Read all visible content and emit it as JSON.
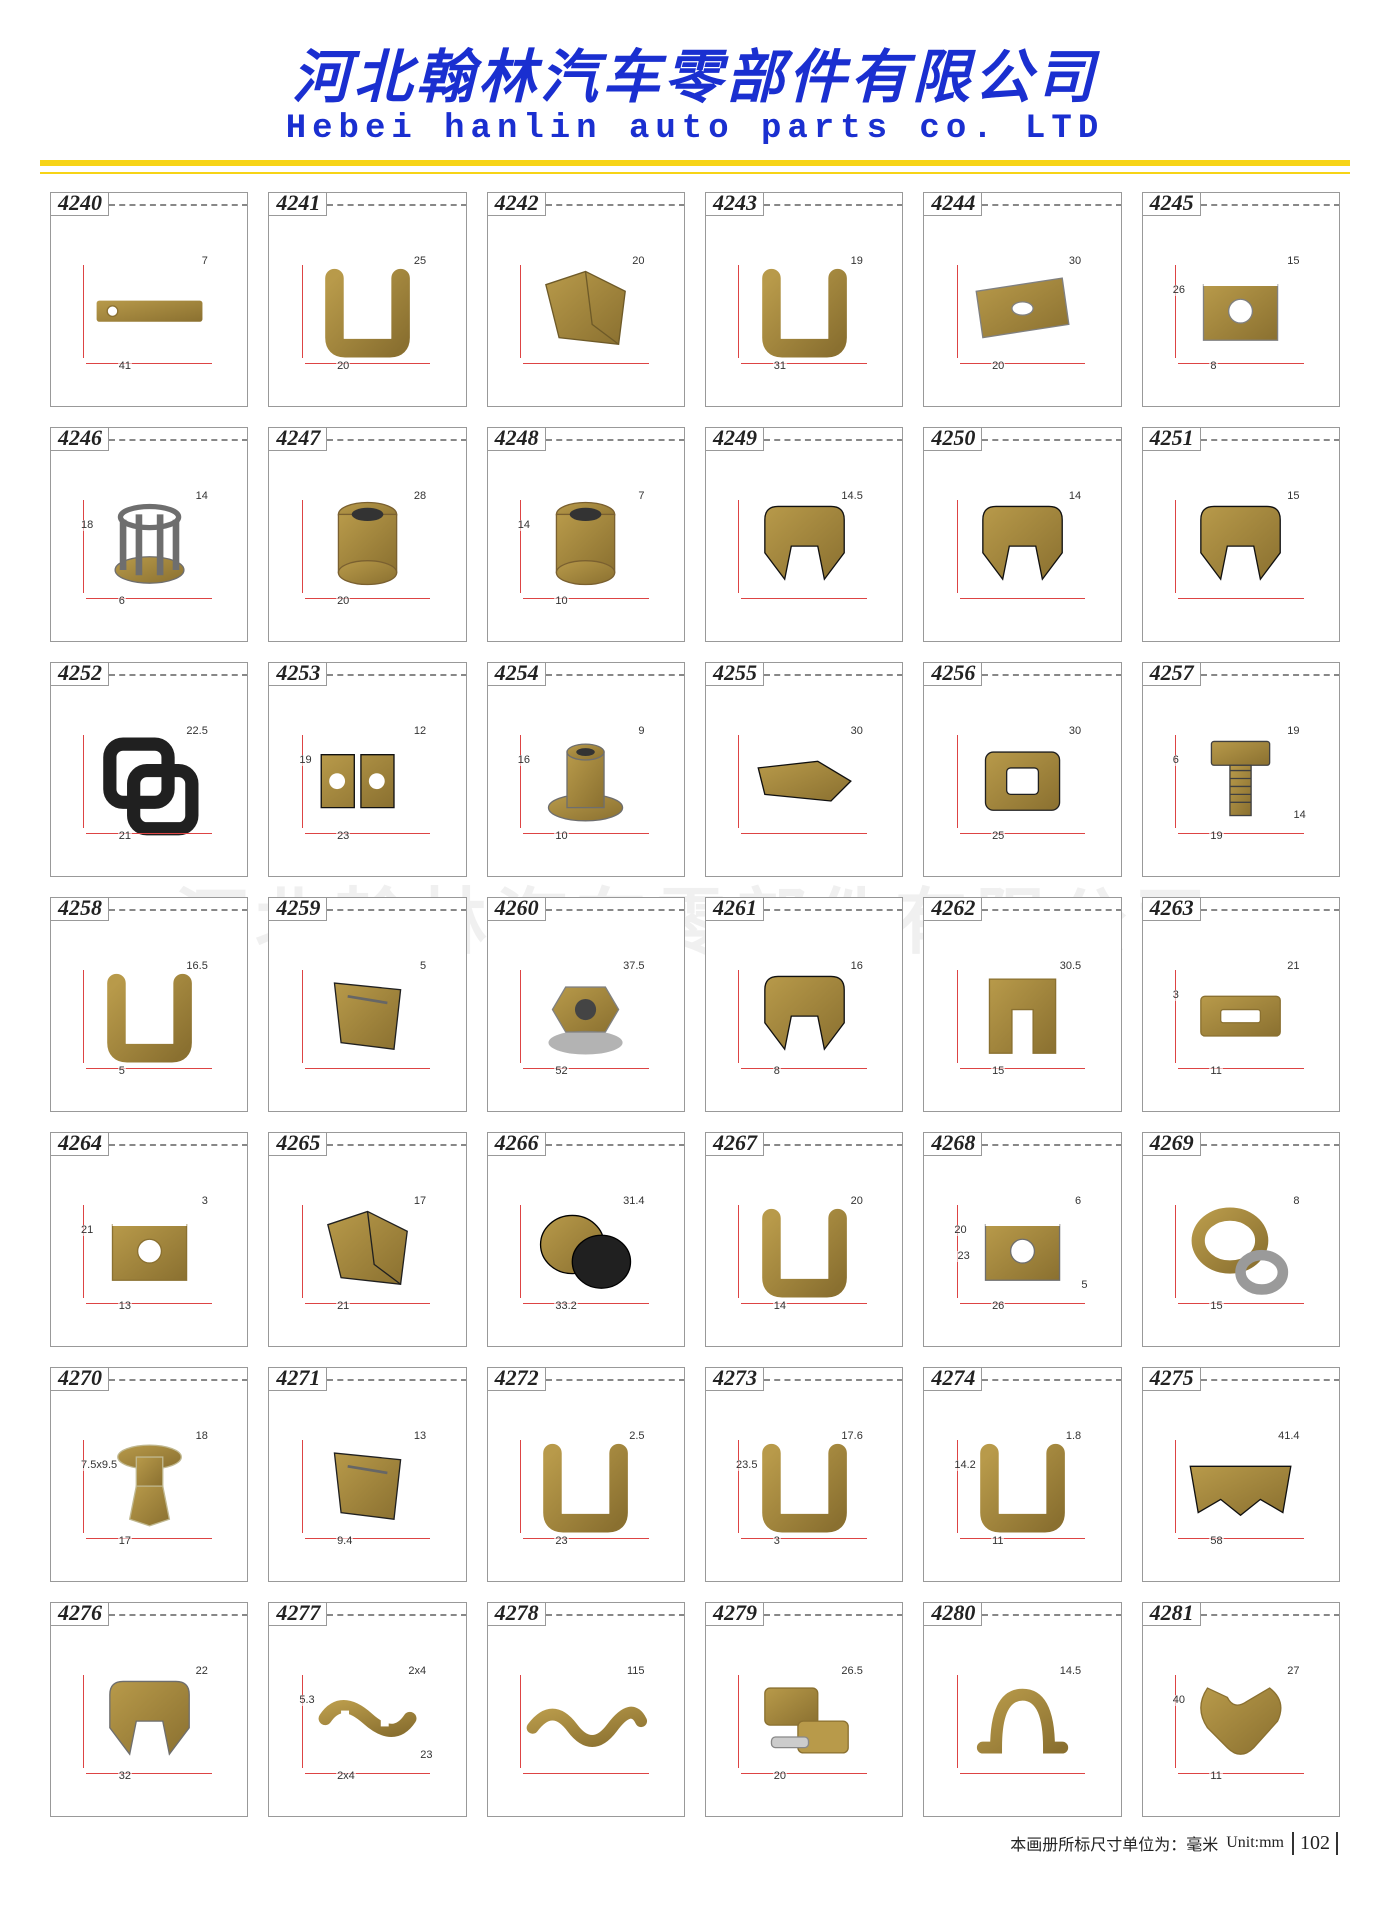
{
  "header": {
    "title_cn": "河北翰林汽车零部件有限公司",
    "title_en": "Hebei hanlin auto parts co. LTD",
    "title_color": "#1a2fd0",
    "divider_color": "#f7d417"
  },
  "watermark": "河北翰林汽车零部件有限公司",
  "footer": {
    "unit_label_cn": "本画册所标尺寸单位为：毫米",
    "unit_label_en": "Unit:mm",
    "page_number": "102"
  },
  "layout": {
    "columns": 6,
    "rows": 7,
    "cell_border_color": "#999999",
    "dim_line_color": "#d44"
  },
  "parts": [
    {
      "id": "4240",
      "dims": [
        "7",
        "41"
      ],
      "shape_hint": "flat-bracket",
      "colors": [
        "#b89a4a",
        "#8a7030"
      ]
    },
    {
      "id": "4241",
      "dims": [
        "25",
        "20"
      ],
      "shape_hint": "u-clip",
      "colors": [
        "#b0b0b0",
        "#808080"
      ]
    },
    {
      "id": "4242",
      "dims": [
        "20"
      ],
      "shape_hint": "folded-clip",
      "colors": [
        "#a8883c",
        "#6e5a28"
      ]
    },
    {
      "id": "4243",
      "dims": [
        "19",
        "31"
      ],
      "shape_hint": "u-clip",
      "colors": [
        "#b89a4a",
        "#8a7030"
      ]
    },
    {
      "id": "4244",
      "dims": [
        "30",
        "20"
      ],
      "shape_hint": "flat-plate",
      "colors": [
        "#b0b0b0",
        "#808080"
      ]
    },
    {
      "id": "4245",
      "dims": [
        "15",
        "8",
        "26"
      ],
      "shape_hint": "u-nut",
      "colors": [
        "#b0b0b0",
        "#808080"
      ]
    },
    {
      "id": "4246",
      "dims": [
        "14",
        "6",
        "18"
      ],
      "shape_hint": "cage-nut",
      "colors": [
        "#9a9a9a",
        "#6e6e6e"
      ]
    },
    {
      "id": "4247",
      "dims": [
        "28",
        "20"
      ],
      "shape_hint": "bushing",
      "colors": [
        "#b89a4a",
        "#7a6030"
      ]
    },
    {
      "id": "4248",
      "dims": [
        "7",
        "10",
        "14"
      ],
      "shape_hint": "bushing",
      "colors": [
        "#b89a4a",
        "#7a6030"
      ]
    },
    {
      "id": "4249",
      "dims": [
        "14.5"
      ],
      "shape_hint": "spring-clip",
      "colors": [
        "#303030",
        "#101010"
      ]
    },
    {
      "id": "4250",
      "dims": [
        "14"
      ],
      "shape_hint": "spring-clip",
      "colors": [
        "#303030",
        "#101010"
      ]
    },
    {
      "id": "4251",
      "dims": [
        "15"
      ],
      "shape_hint": "spring-clip",
      "colors": [
        "#303030",
        "#101010"
      ]
    },
    {
      "id": "4252",
      "dims": [
        "22.5",
        "21"
      ],
      "shape_hint": "square-grommet",
      "colors": [
        "#202020",
        "#000000"
      ]
    },
    {
      "id": "4253",
      "dims": [
        "12",
        "23",
        "19"
      ],
      "shape_hint": "double-clip",
      "colors": [
        "#303030",
        "#101010"
      ]
    },
    {
      "id": "4254",
      "dims": [
        "9",
        "10",
        "16"
      ],
      "shape_hint": "flanged-bushing",
      "colors": [
        "#9a9a9a",
        "#6e6e6e"
      ]
    },
    {
      "id": "4255",
      "dims": [
        "30"
      ],
      "shape_hint": "flat-clip",
      "colors": [
        "#303030",
        "#101010"
      ]
    },
    {
      "id": "4256",
      "dims": [
        "30",
        "25"
      ],
      "shape_hint": "plate-hole",
      "colors": [
        "#404040",
        "#202020"
      ]
    },
    {
      "id": "4257",
      "dims": [
        "19",
        "19",
        "6",
        "14"
      ],
      "shape_hint": "bolt-plate",
      "colors": [
        "#9a9a9a",
        "#404040"
      ]
    },
    {
      "id": "4258",
      "dims": [
        "16.5",
        "5"
      ],
      "shape_hint": "u-clip",
      "colors": [
        "#b89a4a",
        "#8a7030"
      ]
    },
    {
      "id": "4259",
      "dims": [
        "5"
      ],
      "shape_hint": "dark-clip",
      "colors": [
        "#404040",
        "#202020"
      ]
    },
    {
      "id": "4260",
      "dims": [
        "37.5",
        "52"
      ],
      "shape_hint": "chrome-nut",
      "colors": [
        "#d0d0d0",
        "#808080"
      ]
    },
    {
      "id": "4261",
      "dims": [
        "16",
        "8"
      ],
      "shape_hint": "spring-clip",
      "colors": [
        "#303030",
        "#101010"
      ]
    },
    {
      "id": "4262",
      "dims": [
        "30.5",
        "15"
      ],
      "shape_hint": "u-shim",
      "colors": [
        "#b89a4a",
        "#8a7030"
      ]
    },
    {
      "id": "4263",
      "dims": [
        "21",
        "11",
        "3"
      ],
      "shape_hint": "slotted-clip",
      "colors": [
        "#b89a4a",
        "#8a7030"
      ]
    },
    {
      "id": "4264",
      "dims": [
        "3",
        "13",
        "21"
      ],
      "shape_hint": "u-nut",
      "colors": [
        "#b89a4a",
        "#8a7030"
      ]
    },
    {
      "id": "4265",
      "dims": [
        "17",
        "21"
      ],
      "shape_hint": "folded-clip",
      "colors": [
        "#404040",
        "#202020"
      ]
    },
    {
      "id": "4266",
      "dims": [
        "31.4",
        "33.2"
      ],
      "shape_hint": "plug-cap",
      "colors": [
        "#202020",
        "#000000"
      ]
    },
    {
      "id": "4267",
      "dims": [
        "20",
        "14"
      ],
      "shape_hint": "u-clip",
      "colors": [
        "#9a9a9a",
        "#6e6e6e"
      ]
    },
    {
      "id": "4268",
      "dims": [
        "6",
        "26",
        "20",
        "5",
        "23"
      ],
      "shape_hint": "u-nut",
      "colors": [
        "#9a9a9a",
        "#6e6e6e"
      ]
    },
    {
      "id": "4269",
      "dims": [
        "8",
        "15"
      ],
      "shape_hint": "ring-washer",
      "colors": [
        "#9a9a9a",
        "#6e6e6e"
      ]
    },
    {
      "id": "4270",
      "dims": [
        "18",
        "17",
        "7.5x9.5"
      ],
      "shape_hint": "plastic-rivet",
      "colors": [
        "#e8e0c0",
        "#c0b890"
      ]
    },
    {
      "id": "4271",
      "dims": [
        "13",
        "9.4"
      ],
      "shape_hint": "dark-clip",
      "colors": [
        "#404040",
        "#202020"
      ]
    },
    {
      "id": "4272",
      "dims": [
        "2.5",
        "23"
      ],
      "shape_hint": "u-clip",
      "colors": [
        "#303030",
        "#101010"
      ]
    },
    {
      "id": "4273",
      "dims": [
        "17.6",
        "3",
        "23.5"
      ],
      "shape_hint": "u-clip",
      "colors": [
        "#303030",
        "#101010"
      ]
    },
    {
      "id": "4274",
      "dims": [
        "1.8",
        "11",
        "14.2"
      ],
      "shape_hint": "u-clip",
      "colors": [
        "#303030",
        "#101010"
      ]
    },
    {
      "id": "4275",
      "dims": [
        "41.4",
        "58"
      ],
      "shape_hint": "wide-bracket",
      "colors": [
        "#303030",
        "#101010"
      ]
    },
    {
      "id": "4276",
      "dims": [
        "22",
        "32"
      ],
      "shape_hint": "spring-clip",
      "colors": [
        "#9a9a9a",
        "#6e6e6e"
      ]
    },
    {
      "id": "4277",
      "dims": [
        "2x4",
        "2x4",
        "5.3",
        "23"
      ],
      "shape_hint": "slotted-spring",
      "colors": [
        "#b89a4a",
        "#8a7030"
      ]
    },
    {
      "id": "4278",
      "dims": [
        "115"
      ],
      "shape_hint": "long-spring",
      "colors": [
        "#b89a4a",
        "#8a7030"
      ]
    },
    {
      "id": "4279",
      "dims": [
        "26.5",
        "20"
      ],
      "shape_hint": "clip-set",
      "colors": [
        "#b89a4a",
        "#8a7030"
      ]
    },
    {
      "id": "4280",
      "dims": [
        "14.5"
      ],
      "shape_hint": "omega-clip",
      "colors": [
        "#9a9a9a",
        "#6e6e6e"
      ]
    },
    {
      "id": "4281",
      "dims": [
        "27",
        "11",
        "40"
      ],
      "shape_hint": "complex-clip",
      "colors": [
        "#b89a4a",
        "#8a7030"
      ]
    }
  ]
}
